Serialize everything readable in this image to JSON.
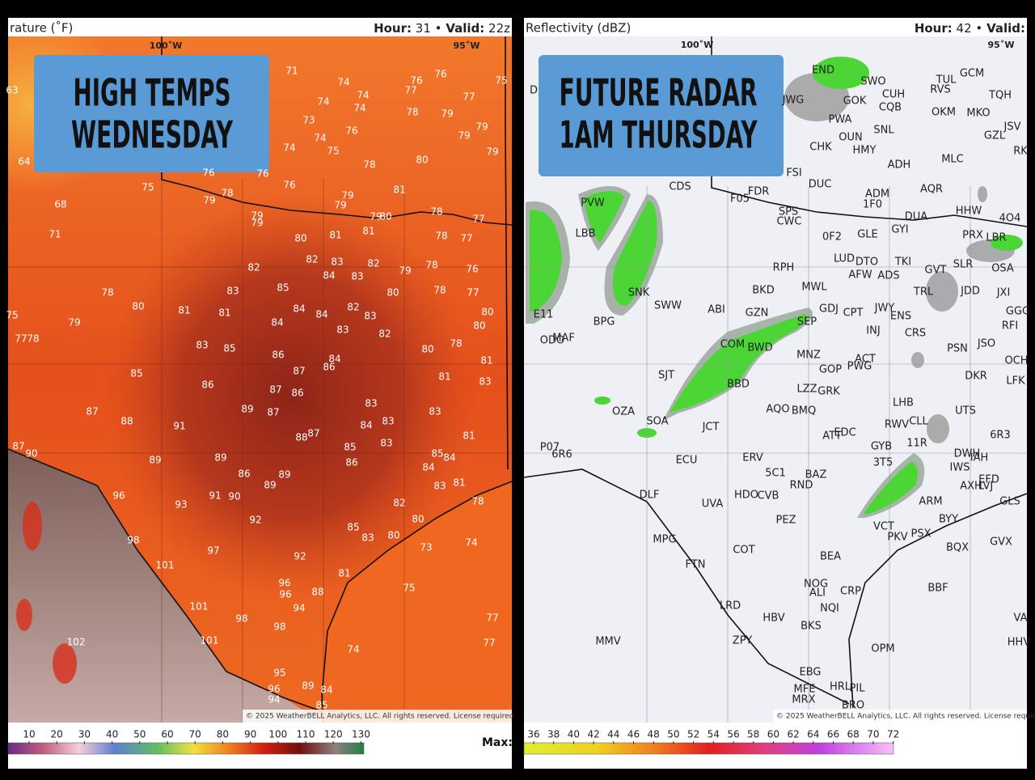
{
  "left_panel": {
    "field": "rature (˚F)",
    "hour_label": "Hour:",
    "hour": 31,
    "separator": "•",
    "valid_label": "Valid:",
    "valid": "22z",
    "longitudes": [
      "100˚W",
      "95˚W"
    ],
    "banner": [
      "HIGH TEMPS",
      "WEDNESDAY"
    ],
    "temperatures": [
      63,
      71,
      74,
      74,
      76,
      76,
      75,
      74,
      74,
      77,
      77,
      73,
      78,
      79,
      74,
      76,
      79,
      74,
      75,
      79,
      64,
      78,
      80,
      79,
      76,
      76,
      75,
      76,
      81,
      78,
      79,
      79,
      79,
      79,
      79,
      68,
      79,
      80,
      78,
      77,
      71,
      80,
      81,
      81,
      78,
      77,
      82,
      83,
      82,
      79,
      78,
      76,
      82,
      84,
      83,
      85,
      83,
      80,
      78,
      77,
      78,
      80,
      81,
      81,
      84,
      84,
      82,
      83,
      80,
      75,
      79,
      84,
      83,
      82,
      80,
      77,
      78,
      83,
      85,
      80,
      78,
      86,
      84,
      86,
      87,
      81,
      85,
      86,
      87,
      86,
      81,
      83,
      89,
      87,
      83,
      87,
      88,
      91,
      84,
      83,
      83,
      88,
      87,
      81,
      83,
      85,
      87,
      90,
      89,
      86,
      89,
      85,
      84,
      84,
      86,
      89,
      81,
      83,
      89,
      96,
      91,
      90,
      93,
      82,
      78,
      92,
      80,
      85,
      83,
      80,
      98,
      74,
      73,
      97,
      92,
      101,
      81,
      75,
      96,
      96,
      88,
      94,
      101,
      98,
      98,
      77,
      101,
      102,
      77,
      74,
      95,
      96,
      89,
      84,
      94,
      85
    ],
    "copyright": "© 2025 WeatherBELL Analytics, LLC. All rights reserved. License required",
    "scale": [
      10,
      20,
      30,
      40,
      50,
      60,
      70,
      80,
      90,
      100,
      110,
      120,
      130
    ],
    "max_label": "Max:"
  },
  "right_panel": {
    "field": "Reflectivity (dBZ)",
    "hour_label": "Hour:",
    "hour": 42,
    "separator": "•",
    "valid_label": "Valid:",
    "longitudes": [
      "100˚W",
      "95˚W"
    ],
    "banner": [
      "FUTURE RADAR",
      "1AM THURSDAY"
    ],
    "stations": [
      "D",
      "END",
      "SWO",
      "TUL",
      "GCM",
      "RVS",
      "CUH",
      "TQH",
      "GOK",
      "CQB",
      "OKM",
      "MKO",
      "JWG",
      "PWA",
      "JSV",
      "SNL",
      "OUN",
      "GZL",
      "CHK",
      "HMY",
      "RK",
      "MLC",
      "ADH",
      "FSI",
      "DUC",
      "CDS",
      "AQR",
      "FDR",
      "ADM",
      "F05",
      "1F0",
      "PVW",
      "HHW",
      "SPS",
      "DUA",
      "4O4",
      "CWC",
      "GYI",
      "GLE",
      "0F2",
      "PRX",
      "LBR",
      "LBB",
      "LUD",
      "DTO",
      "TKI",
      "SLR",
      "GVT",
      "OSA",
      "RPH",
      "AFW",
      "ADS",
      "MWL",
      "BKD",
      "TRL",
      "JDD",
      "JXI",
      "SNK",
      "SWW",
      "ABI",
      "GZN",
      "GDJ",
      "CPT",
      "JWY",
      "ENS",
      "GGG",
      "BPG",
      "E11",
      "RFI",
      "SEP",
      "INJ",
      "CRS",
      "MAF",
      "ODO",
      "COM",
      "BWD",
      "JSO",
      "PSN",
      "MNZ",
      "ACT",
      "OCH",
      "GOP",
      "PWG",
      "DKR",
      "SJT",
      "BBD",
      "LZZ",
      "GRK",
      "LFK",
      "LHB",
      "OZA",
      "AQO",
      "BMQ",
      "UTS",
      "SOA",
      "JCT",
      "CLL",
      "RWV",
      "11R",
      "ATT",
      "EDC",
      "6R3",
      "GYB",
      "P07",
      "6R6",
      "DWH",
      "IAH",
      "ECU",
      "ERV",
      "3T5",
      "IWS",
      "5C1",
      "BAZ",
      "EFD",
      "AXH",
      "LVJ",
      "RND",
      "DLF",
      "HDO",
      "CVB",
      "GLS",
      "ARM",
      "UVA",
      "BYY",
      "PEZ",
      "MPG",
      "VCT",
      "PKV",
      "PSX",
      "GVX",
      "BQX",
      "FTN",
      "COT",
      "BEA",
      "BBF",
      "NOG",
      "ALI",
      "CRP",
      "NQI",
      "LRD",
      "HBV",
      "BKS",
      "VA",
      "MMV",
      "ZPY",
      "OPM",
      "HHV",
      "EBG",
      "HRL",
      "MFE",
      "PIL",
      "MRX",
      "BRO"
    ],
    "copyright": "© 2025 WeatherBELL Analytics, LLC. All rights reserved. License require",
    "scale": [
      36,
      38,
      40,
      42,
      44,
      46,
      48,
      50,
      52,
      54,
      56,
      58,
      60,
      62,
      64,
      66,
      68,
      70,
      72
    ]
  }
}
